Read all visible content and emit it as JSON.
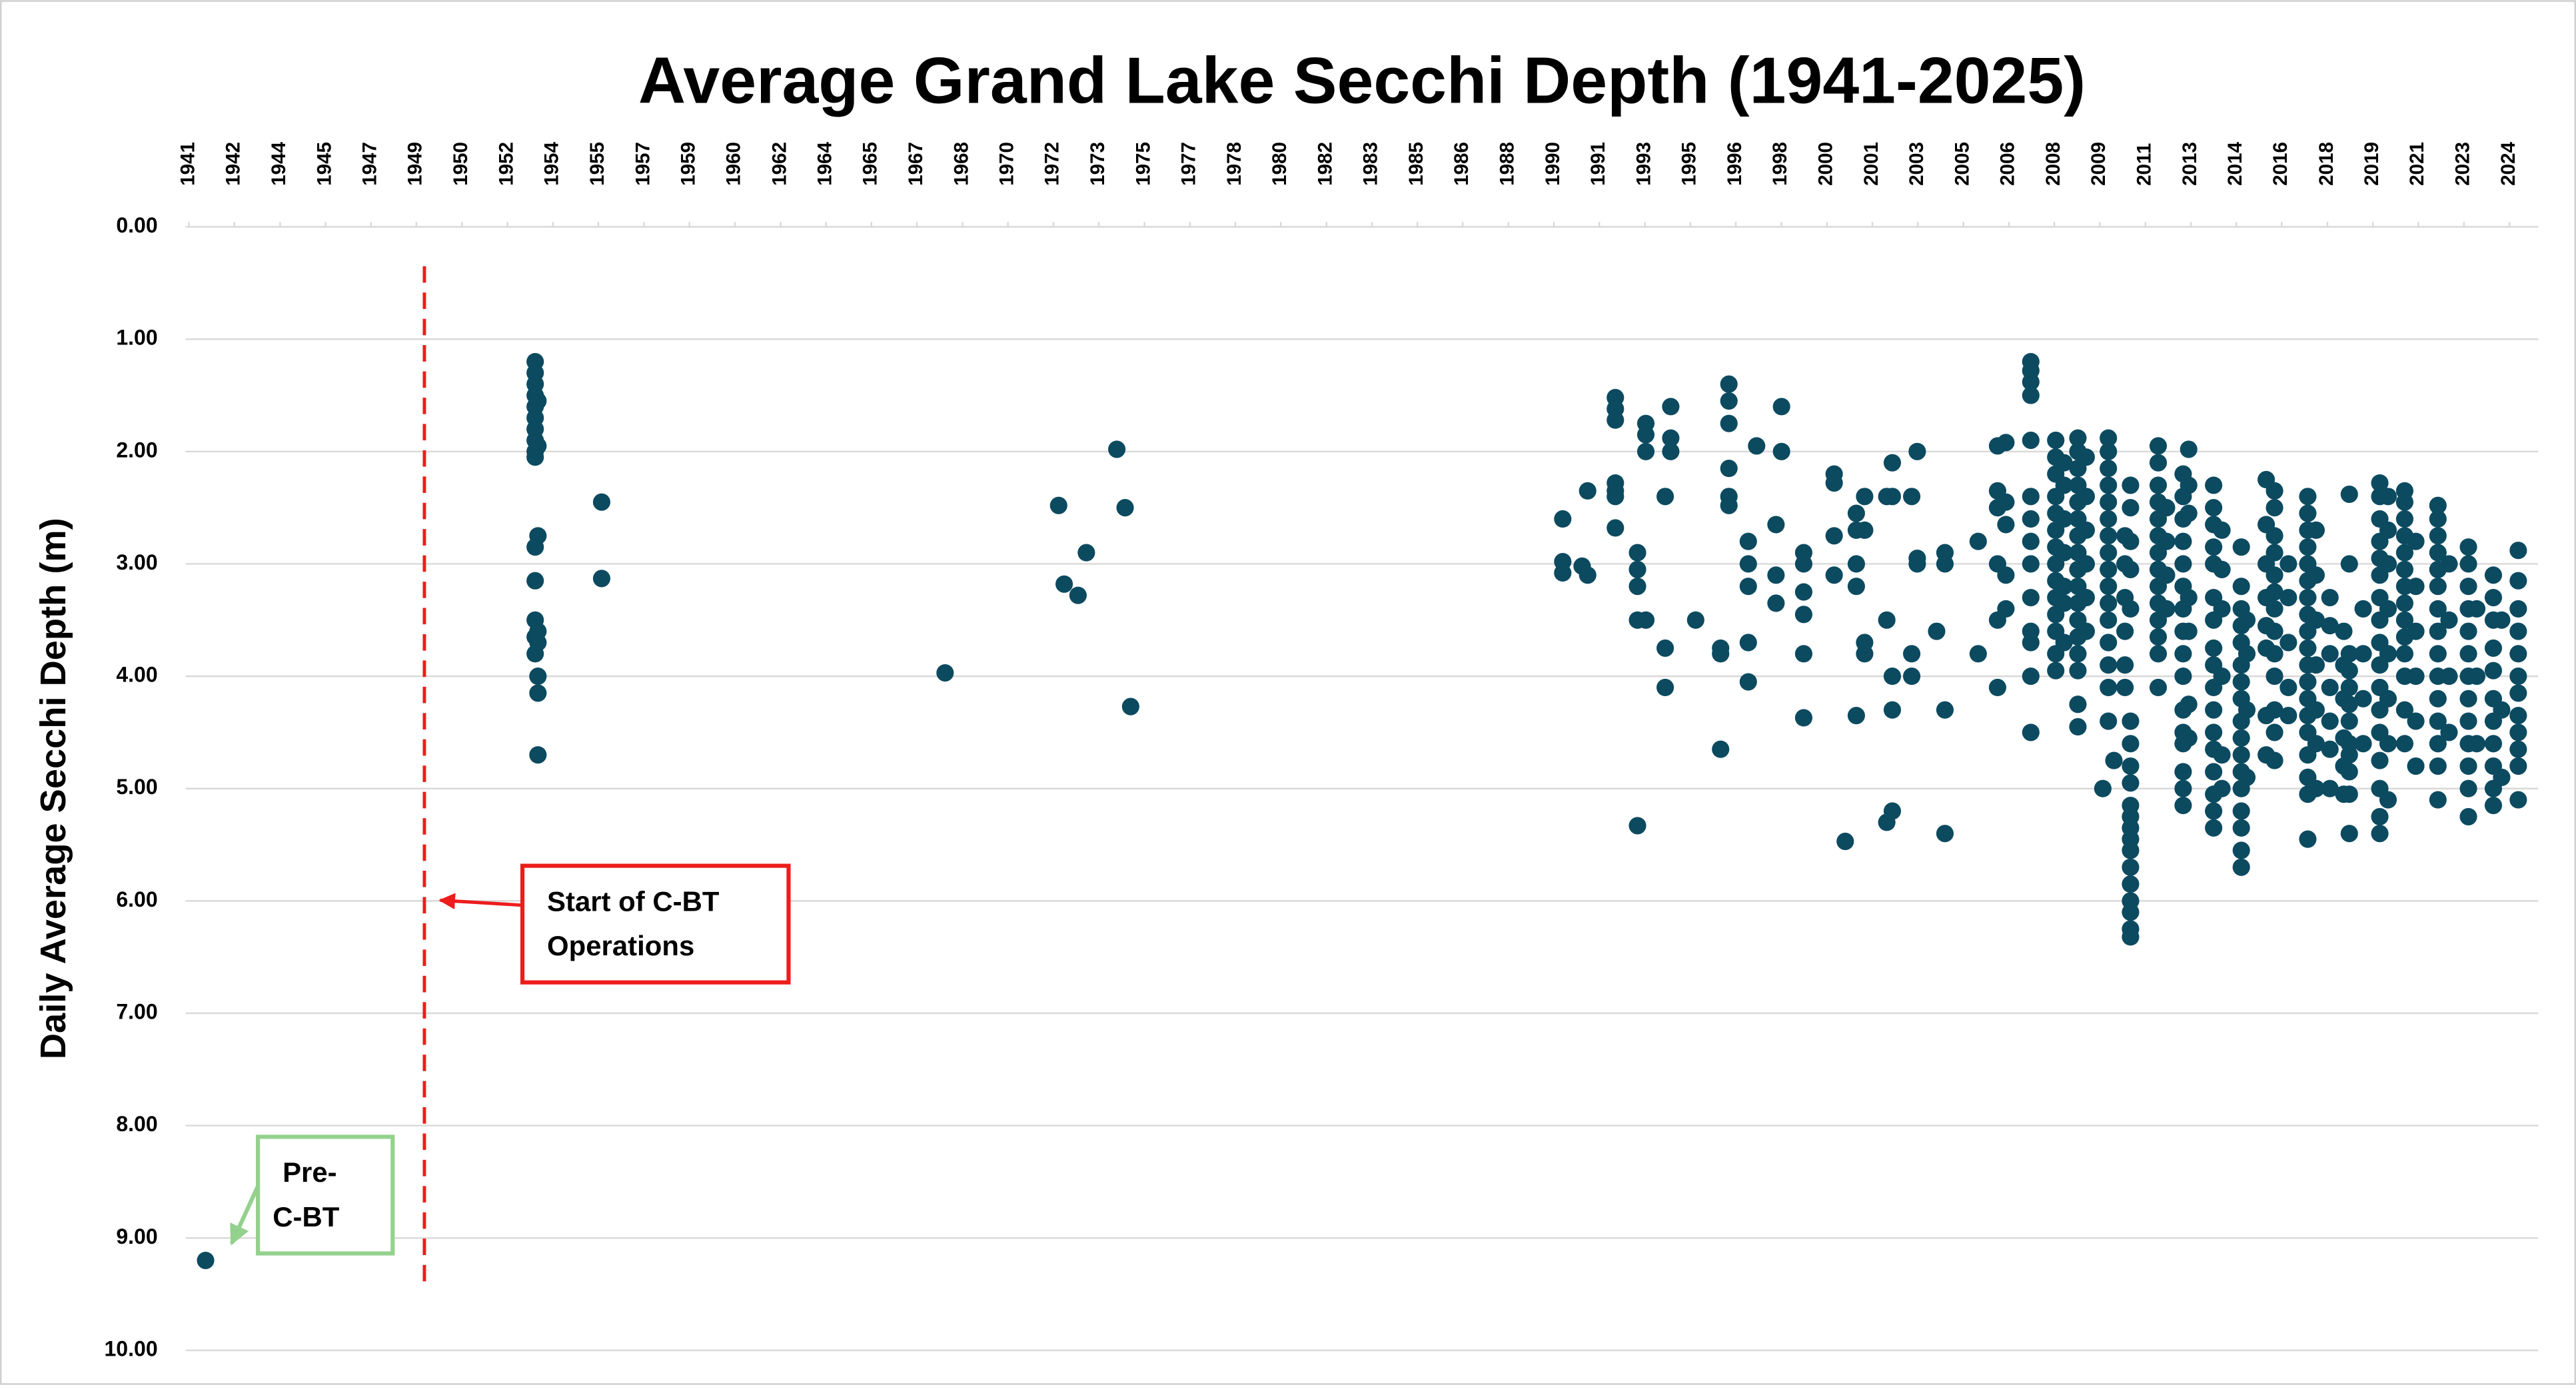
{
  "chart_data": {
    "type": "scatter",
    "title": "Average Grand Lake Secchi Depth  (1941-2025)",
    "y_label": "Daily Average Secchi Depth (m)",
    "color": "#0c4a60",
    "y_reversed": true,
    "grid": true,
    "xlim": [
      1940.88,
      2025.82
    ],
    "ylim": [
      0,
      10
    ],
    "yticks": [
      {
        "value": 0,
        "label": "0.00"
      },
      {
        "value": 1,
        "label": "1.00"
      },
      {
        "value": 2,
        "label": "2.00"
      },
      {
        "value": 3,
        "label": "3.00"
      },
      {
        "value": 4,
        "label": "4.00"
      },
      {
        "value": 5,
        "label": "5.00"
      },
      {
        "value": 6,
        "label": "6.00"
      },
      {
        "value": 7,
        "label": "7.00"
      },
      {
        "value": 8,
        "label": "8.00"
      },
      {
        "value": 9,
        "label": "9.00"
      },
      {
        "value": 10,
        "label": "10.00"
      }
    ],
    "xticks": [
      1941,
      {
        "value": 1942.64,
        "label": "1942"
      },
      {
        "value": 1944.29,
        "label": "1944"
      },
      {
        "value": 1945.93,
        "label": "1945"
      },
      {
        "value": 1947.57,
        "label": "1947"
      },
      {
        "value": 1949.21,
        "label": "1949"
      },
      {
        "value": 1950.86,
        "label": "1950"
      },
      {
        "value": 1952.5,
        "label": "1952"
      },
      {
        "value": 1954.14,
        "label": "1954"
      },
      {
        "value": 1955.78,
        "label": "1955"
      },
      {
        "value": 1957.43,
        "label": "1957"
      },
      {
        "value": 1959.07,
        "label": "1959"
      },
      {
        "value": 1960.71,
        "label": "1960"
      },
      {
        "value": 1962.36,
        "label": "1962"
      },
      1964,
      {
        "value": 1965.64,
        "label": "1965"
      },
      {
        "value": 1967.28,
        "label": "1967"
      },
      {
        "value": 1968.93,
        "label": "1968"
      },
      {
        "value": 1970.57,
        "label": "1970"
      },
      {
        "value": 1972.21,
        "label": "1972"
      },
      {
        "value": 1973.85,
        "label": "1973"
      },
      {
        "value": 1975.5,
        "label": "1975"
      },
      {
        "value": 1977.14,
        "label": "1977"
      },
      {
        "value": 1978.78,
        "label": "1978"
      },
      {
        "value": 1980.42,
        "label": "1980"
      },
      {
        "value": 1982.07,
        "label": "1982"
      },
      {
        "value": 1983.71,
        "label": "1983"
      },
      {
        "value": 1985.35,
        "label": "1985"
      },
      {
        "value": 1986.99,
        "label": "1986"
      },
      {
        "value": 1988.64,
        "label": "1988"
      },
      {
        "value": 1990.28,
        "label": "1990"
      },
      {
        "value": 1991.92,
        "label": "1991"
      },
      {
        "value": 1993.57,
        "label": "1993"
      },
      {
        "value": 1995.21,
        "label": "1995"
      },
      {
        "value": 1996.85,
        "label": "1996"
      },
      {
        "value": 1998.49,
        "label": "1998"
      },
      {
        "value": 2000.14,
        "label": "2000"
      },
      {
        "value": 2001.78,
        "label": "2001"
      },
      {
        "value": 2003.42,
        "label": "2003"
      },
      {
        "value": 2005.07,
        "label": "2005"
      },
      {
        "value": 2006.71,
        "label": "2006"
      },
      {
        "value": 2008.35,
        "label": "2008"
      },
      {
        "value": 2009.99,
        "label": "2009"
      },
      {
        "value": 2011.64,
        "label": "2011"
      },
      {
        "value": 2013.28,
        "label": "2013"
      },
      {
        "value": 2014.92,
        "label": "2014"
      },
      {
        "value": 2016.56,
        "label": "2016"
      },
      {
        "value": 2018.21,
        "label": "2018"
      },
      {
        "value": 2019.85,
        "label": "2019"
      },
      {
        "value": 2021.49,
        "label": "2021"
      },
      {
        "value": 2023.14,
        "label": "2023"
      },
      {
        "value": 2024.78,
        "label": "2024"
      }
    ],
    "annotations": [
      {
        "lines": [
          "Start of C-BT",
          "Operations"
        ],
        "x": 1949.5
      },
      {
        "lines": [
          "Pre-",
          "C-BT"
        ]
      }
    ],
    "x": [
      1941.6,
      1953.5,
      1953.5,
      1953.5,
      1953.5,
      1953.5,
      1953.5,
      1953.5,
      1953.5,
      1953.5,
      1953.5,
      1953.5,
      1953.5,
      1953.5,
      1953.5,
      1953.5,
      1953.6,
      1953.6,
      1953.6,
      1953.6,
      1953.6,
      1953.6,
      1953.6,
      1953.6,
      1955.9,
      1955.9,
      1968.3,
      1972.4,
      1972.6,
      1973.1,
      1973.4,
      1974.5,
      1974.8,
      1975.0,
      1990.6,
      1990.6,
      1990.6,
      1991.3,
      1991.5,
      1991.5,
      1992.5,
      1992.5,
      1992.5,
      1992.5,
      1992.5,
      1992.5,
      1992.5,
      1993.3,
      1993.3,
      1993.3,
      1993.3,
      1993.3,
      1993.6,
      1993.6,
      1993.6,
      1993.6,
      1994.3,
      1994.3,
      1994.3,
      1994.5,
      1994.5,
      1994.5,
      1995.4,
      1996.3,
      1996.3,
      1996.3,
      1996.6,
      1996.6,
      1996.6,
      1996.6,
      1996.6,
      1996.6,
      1997.3,
      1997.3,
      1997.3,
      1997.3,
      1997.3,
      1997.6,
      1998.3,
      1998.3,
      1998.3,
      1998.5,
      1998.5,
      1999.3,
      1999.3,
      1999.3,
      1999.3,
      1999.3,
      1999.3,
      2000.4,
      2000.4,
      2000.4,
      2000.4,
      2000.8,
      2001.2,
      2001.2,
      2001.2,
      2001.2,
      2001.2,
      2001.5,
      2001.5,
      2001.5,
      2001.5,
      2002.3,
      2002.3,
      2002.3,
      2002.5,
      2002.5,
      2002.5,
      2002.5,
      2002.5,
      2003.2,
      2003.2,
      2003.2,
      2003.4,
      2003.4,
      2003.4,
      2004.1,
      2004.4,
      2004.4,
      2004.4,
      2004.4,
      2005.6,
      2005.6,
      2006.3,
      2006.3,
      2006.3,
      2006.3,
      2006.3,
      2006.3,
      2006.6,
      2006.6,
      2006.6,
      2006.6,
      2006.6,
      2007.5,
      2007.5,
      2007.5,
      2007.5,
      2007.5,
      2007.5,
      2007.5,
      2007.5,
      2007.5,
      2007.5,
      2007.5,
      2007.5,
      2007.5,
      2007.5,
      2008.4,
      2008.4,
      2008.4,
      2008.4,
      2008.4,
      2008.4,
      2008.4,
      2008.4,
      2008.4,
      2008.4,
      2008.4,
      2008.4,
      2008.4,
      2008.4,
      2008.7,
      2008.7,
      2008.7,
      2008.7,
      2008.7,
      2008.7,
      2008.7,
      2009.2,
      2009.2,
      2009.2,
      2009.2,
      2009.2,
      2009.2,
      2009.2,
      2009.2,
      2009.2,
      2009.2,
      2009.2,
      2009.2,
      2009.2,
      2009.2,
      2009.2,
      2009.2,
      2009.2,
      2009.5,
      2009.5,
      2009.5,
      2009.5,
      2009.5,
      2009.5,
      2010.1,
      2010.3,
      2010.3,
      2010.3,
      2010.3,
      2010.3,
      2010.3,
      2010.3,
      2010.3,
      2010.3,
      2010.3,
      2010.3,
      2010.3,
      2010.3,
      2010.3,
      2010.3,
      2010.3,
      2010.5,
      2010.9,
      2010.9,
      2010.9,
      2010.9,
      2010.9,
      2010.9,
      2011.1,
      2011.1,
      2011.1,
      2011.1,
      2011.1,
      2011.1,
      2011.1,
      2011.1,
      2011.1,
      2011.1,
      2011.1,
      2011.1,
      2011.1,
      2011.1,
      2011.1,
      2011.1,
      2011.1,
      2011.1,
      2011.1,
      2011.1,
      2012.1,
      2012.1,
      2012.1,
      2012.1,
      2012.1,
      2012.1,
      2012.1,
      2012.1,
      2012.1,
      2012.1,
      2012.1,
      2012.1,
      2012.1,
      2012.1,
      2012.4,
      2012.4,
      2012.4,
      2012.4,
      2013.0,
      2013.0,
      2013.0,
      2013.0,
      2013.0,
      2013.0,
      2013.0,
      2013.0,
      2013.0,
      2013.0,
      2013.0,
      2013.0,
      2013.0,
      2013.0,
      2013.0,
      2013.0,
      2013.2,
      2013.2,
      2013.2,
      2013.2,
      2013.2,
      2013.2,
      2013.2,
      2014.1,
      2014.1,
      2014.1,
      2014.1,
      2014.1,
      2014.1,
      2014.1,
      2014.1,
      2014.1,
      2014.1,
      2014.1,
      2014.1,
      2014.1,
      2014.1,
      2014.1,
      2014.1,
      2014.1,
      2014.4,
      2014.4,
      2014.4,
      2014.4,
      2014.4,
      2014.4,
      2015.1,
      2015.1,
      2015.1,
      2015.1,
      2015.1,
      2015.1,
      2015.1,
      2015.1,
      2015.1,
      2015.1,
      2015.1,
      2015.1,
      2015.1,
      2015.1,
      2015.1,
      2015.1,
      2015.1,
      2015.3,
      2015.3,
      2015.3,
      2015.3,
      2016.0,
      2016.0,
      2016.0,
      2016.0,
      2016.0,
      2016.0,
      2016.0,
      2016.0,
      2016.3,
      2016.3,
      2016.3,
      2016.3,
      2016.3,
      2016.3,
      2016.3,
      2016.3,
      2016.3,
      2016.3,
      2016.3,
      2016.3,
      2016.3,
      2016.8,
      2016.8,
      2016.8,
      2016.8,
      2016.8,
      2017.5,
      2017.5,
      2017.5,
      2017.5,
      2017.5,
      2017.5,
      2017.5,
      2017.5,
      2017.5,
      2017.5,
      2017.5,
      2017.5,
      2017.5,
      2017.5,
      2017.5,
      2017.5,
      2017.5,
      2017.5,
      2017.5,
      2017.8,
      2017.8,
      2017.8,
      2017.8,
      2017.8,
      2017.8,
      2017.8,
      2018.3,
      2018.3,
      2018.3,
      2018.3,
      2018.3,
      2018.3,
      2018.3,
      2018.8,
      2018.8,
      2018.8,
      2018.8,
      2018.8,
      2018.8,
      2019.0,
      2019.0,
      2019.0,
      2019.0,
      2019.0,
      2019.0,
      2019.0,
      2019.0,
      2019.0,
      2019.0,
      2019.0,
      2019.0,
      2019.5,
      2019.5,
      2019.5,
      2019.5,
      2020.1,
      2020.1,
      2020.1,
      2020.1,
      2020.1,
      2020.1,
      2020.1,
      2020.1,
      2020.1,
      2020.1,
      2020.1,
      2020.1,
      2020.1,
      2020.1,
      2020.1,
      2020.1,
      2020.1,
      2020.4,
      2020.4,
      2020.4,
      2020.4,
      2020.4,
      2020.4,
      2020.4,
      2020.4,
      2021.0,
      2021.0,
      2021.0,
      2021.0,
      2021.0,
      2021.0,
      2021.0,
      2021.0,
      2021.0,
      2021.0,
      2021.0,
      2021.0,
      2021.0,
      2021.0,
      2021.4,
      2021.4,
      2021.4,
      2021.4,
      2021.4,
      2021.4,
      2022.2,
      2022.2,
      2022.2,
      2022.2,
      2022.2,
      2022.2,
      2022.2,
      2022.2,
      2022.2,
      2022.2,
      2022.2,
      2022.2,
      2022.2,
      2022.2,
      2022.2,
      2022.6,
      2022.6,
      2022.6,
      2022.6,
      2023.3,
      2023.3,
      2023.3,
      2023.3,
      2023.3,
      2023.3,
      2023.3,
      2023.3,
      2023.3,
      2023.3,
      2023.3,
      2023.3,
      2023.3,
      2023.6,
      2023.6,
      2023.6,
      2024.2,
      2024.2,
      2024.2,
      2024.2,
      2024.2,
      2024.2,
      2024.2,
      2024.2,
      2024.2,
      2024.2,
      2024.2,
      2024.5,
      2024.5,
      2024.5,
      2025.1,
      2025.1,
      2025.1,
      2025.1,
      2025.1,
      2025.1,
      2025.1,
      2025.1,
      2025.1,
      2025.1,
      2025.1,
      2025.1
    ],
    "values": [
      9.2,
      1.2,
      1.3,
      1.4,
      1.5,
      1.6,
      1.7,
      1.8,
      1.9,
      2.0,
      2.05,
      2.85,
      3.15,
      3.5,
      3.65,
      3.8,
      1.55,
      1.95,
      2.75,
      3.6,
      3.7,
      4.0,
      4.15,
      4.7,
      2.45,
      3.13,
      3.97,
      2.48,
      3.18,
      3.28,
      2.9,
      1.98,
      2.5,
      4.27,
      2.6,
      2.98,
      3.08,
      3.02,
      2.35,
      3.1,
      1.52,
      1.62,
      1.72,
      2.28,
      2.35,
      2.4,
      2.68,
      2.9,
      3.05,
      3.2,
      3.5,
      5.33,
      1.75,
      1.85,
      2.0,
      3.5,
      2.4,
      3.75,
      4.1,
      1.6,
      1.88,
      2.0,
      3.5,
      3.75,
      3.8,
      4.65,
      1.4,
      1.55,
      1.75,
      2.15,
      2.4,
      2.48,
      2.8,
      3.0,
      3.2,
      3.7,
      4.05,
      1.95,
      2.65,
      3.1,
      3.35,
      1.6,
      2.0,
      2.9,
      3.0,
      3.25,
      3.45,
      3.8,
      4.37,
      2.2,
      2.28,
      2.75,
      3.1,
      5.47,
      2.55,
      2.7,
      3.0,
      3.2,
      4.35,
      2.4,
      2.7,
      3.7,
      3.8,
      2.4,
      3.5,
      5.3,
      2.1,
      2.4,
      4.0,
      4.3,
      5.2,
      2.4,
      3.8,
      4.0,
      2.0,
      2.95,
      3.0,
      3.6,
      2.9,
      3.0,
      4.3,
      5.4,
      2.8,
      3.8,
      1.95,
      2.35,
      2.5,
      3.0,
      3.5,
      4.1,
      1.92,
      2.45,
      2.65,
      3.1,
      3.4,
      1.2,
      1.28,
      1.38,
      1.5,
      1.9,
      2.4,
      2.6,
      2.8,
      3.0,
      3.3,
      3.6,
      3.7,
      4.0,
      4.5,
      1.9,
      2.05,
      2.2,
      2.4,
      2.55,
      2.7,
      2.85,
      3.0,
      3.15,
      3.3,
      3.45,
      3.6,
      3.8,
      3.95,
      2.1,
      2.3,
      2.6,
      2.9,
      3.2,
      3.35,
      3.7,
      1.88,
      2.0,
      2.15,
      2.3,
      2.45,
      2.6,
      2.75,
      2.9,
      3.05,
      3.2,
      3.35,
      3.5,
      3.65,
      3.8,
      3.95,
      4.25,
      4.45,
      2.05,
      2.4,
      2.7,
      3.0,
      3.3,
      3.6,
      5.0,
      1.88,
      2.0,
      2.15,
      2.3,
      2.45,
      2.6,
      2.75,
      2.9,
      3.05,
      3.2,
      3.35,
      3.5,
      3.7,
      3.9,
      4.1,
      4.4,
      4.75,
      2.75,
      3.0,
      3.3,
      3.6,
      3.9,
      4.1,
      2.3,
      2.5,
      2.8,
      3.05,
      3.4,
      4.4,
      4.6,
      4.8,
      4.95,
      5.15,
      5.25,
      5.35,
      5.45,
      5.55,
      5.7,
      5.85,
      6.0,
      6.1,
      6.25,
      6.32,
      1.95,
      2.1,
      2.3,
      2.45,
      2.6,
      2.75,
      2.9,
      3.05,
      3.2,
      3.35,
      3.5,
      3.65,
      3.8,
      4.1,
      2.5,
      2.8,
      3.1,
      3.4,
      2.2,
      2.4,
      2.6,
      2.8,
      3.0,
      3.2,
      3.4,
      3.6,
      3.8,
      4.0,
      4.3,
      4.5,
      4.6,
      4.85,
      5.0,
      5.15,
      1.98,
      2.3,
      2.55,
      3.3,
      3.6,
      4.25,
      4.55,
      2.3,
      2.5,
      2.65,
      2.85,
      3.0,
      3.3,
      3.5,
      3.75,
      3.9,
      4.1,
      4.3,
      4.5,
      4.65,
      4.85,
      5.05,
      5.2,
      5.35,
      2.7,
      3.05,
      3.4,
      4.0,
      4.7,
      5.0,
      2.85,
      3.2,
      3.4,
      3.55,
      3.7,
      3.9,
      4.05,
      4.2,
      4.4,
      4.55,
      4.7,
      4.85,
      5.0,
      5.2,
      5.35,
      5.55,
      5.7,
      3.5,
      3.8,
      4.3,
      4.9,
      2.25,
      2.65,
      3.0,
      3.3,
      3.55,
      3.75,
      4.35,
      4.7,
      2.35,
      2.5,
      2.75,
      2.9,
      3.1,
      3.25,
      3.4,
      3.6,
      3.8,
      4.0,
      4.3,
      4.5,
      4.75,
      3.0,
      3.3,
      3.7,
      4.1,
      4.35,
      2.4,
      2.55,
      2.7,
      2.85,
      3.0,
      3.15,
      3.3,
      3.45,
      3.6,
      3.75,
      3.9,
      4.05,
      4.2,
      4.35,
      4.5,
      4.7,
      4.9,
      5.05,
      5.45,
      2.7,
      3.1,
      3.5,
      3.9,
      4.3,
      4.6,
      5.0,
      3.3,
      3.55,
      3.8,
      4.1,
      4.4,
      4.65,
      5.0,
      3.6,
      3.9,
      4.2,
      4.55,
      4.8,
      5.05,
      2.38,
      3.0,
      3.8,
      3.95,
      4.1,
      4.25,
      4.4,
      4.6,
      4.7,
      4.85,
      5.05,
      5.4,
      3.4,
      3.8,
      4.2,
      4.6,
      2.28,
      2.4,
      2.6,
      2.8,
      2.95,
      3.1,
      3.3,
      3.5,
      3.7,
      3.9,
      4.1,
      4.3,
      4.5,
      4.75,
      5.0,
      5.25,
      5.4,
      2.4,
      2.7,
      3.0,
      3.4,
      3.8,
      4.2,
      4.6,
      5.1,
      2.35,
      2.45,
      2.6,
      2.75,
      2.9,
      3.05,
      3.2,
      3.35,
      3.5,
      3.65,
      3.8,
      4.0,
      4.3,
      4.6,
      2.8,
      3.2,
      3.6,
      4.0,
      4.4,
      4.8,
      2.48,
      2.6,
      2.75,
      2.9,
      3.05,
      3.2,
      3.4,
      3.6,
      3.8,
      4.0,
      4.2,
      4.4,
      4.6,
      4.8,
      5.1,
      3.0,
      3.5,
      4.0,
      4.5,
      2.85,
      3.0,
      3.2,
      3.4,
      3.6,
      3.8,
      4.0,
      4.2,
      4.4,
      4.6,
      4.8,
      5.0,
      5.25,
      3.4,
      4.0,
      4.6,
      3.1,
      3.3,
      3.5,
      3.75,
      3.95,
      4.2,
      4.4,
      4.6,
      4.8,
      5.0,
      5.15,
      3.5,
      4.3,
      4.9,
      2.88,
      3.15,
      3.4,
      3.6,
      3.8,
      4.0,
      4.15,
      4.35,
      4.5,
      4.65,
      4.8,
      5.1
    ]
  }
}
